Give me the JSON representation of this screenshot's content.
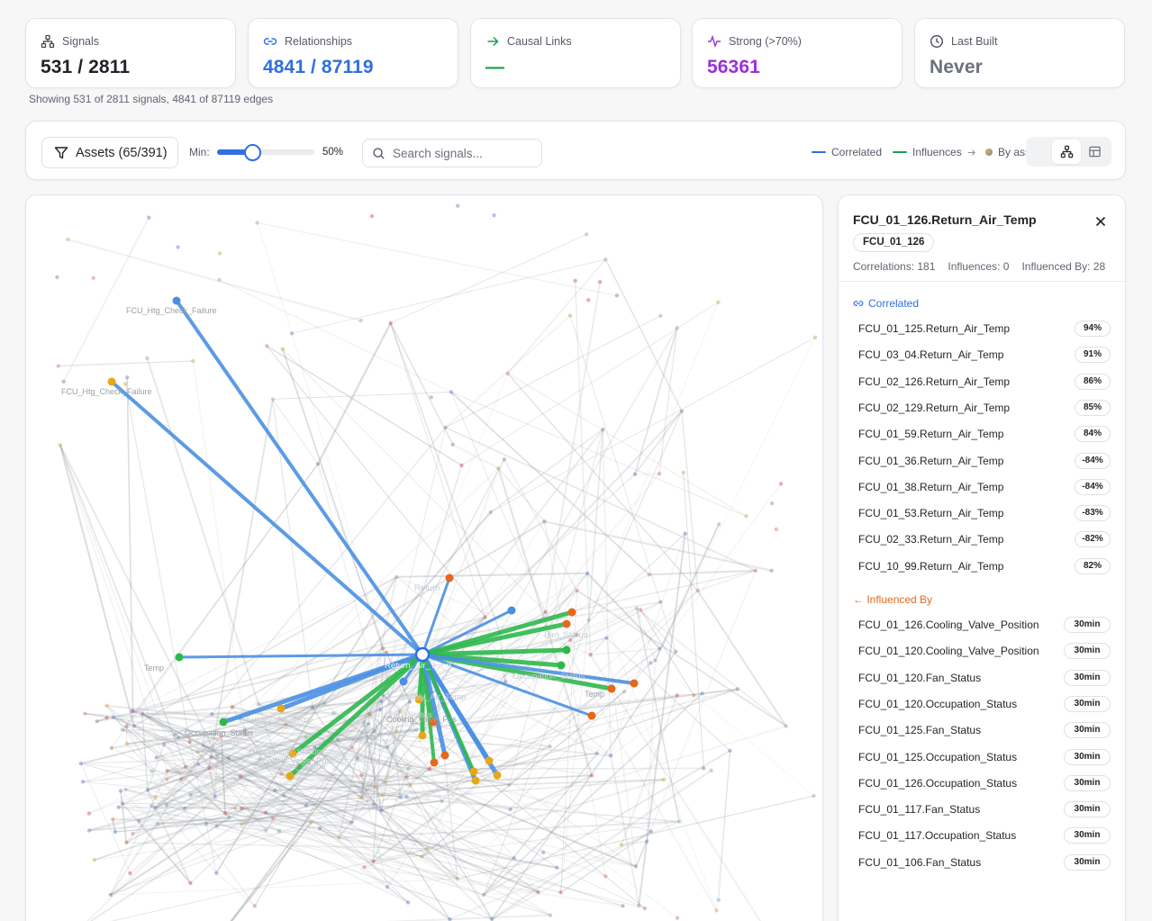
{
  "stats": [
    {
      "label": "Signals",
      "value": "531 / 2811",
      "icon": "network-icon",
      "color": "#1f2328"
    },
    {
      "label": "Relationships",
      "value": "4841 / 87119",
      "icon": "link-icon",
      "color": "#2f6fe0"
    },
    {
      "label": "Causal Links",
      "value": "—",
      "icon": "arrow-right-icon",
      "color": "#19a14a"
    },
    {
      "label": "Strong (>70%)",
      "value": "56361",
      "icon": "activity-icon",
      "color": "#9b2fd8"
    },
    {
      "label": "Last Built",
      "value": "Never",
      "icon": "clock-icon",
      "color": "#6b717c"
    }
  ],
  "showing_text": "Showing 531 of 2811 signals, 4841 of 87119 edges",
  "toolbar": {
    "assets_label": "Assets (65/391)",
    "min_label": "Min:",
    "min_value": "50%",
    "min_fraction": 0.5,
    "search_placeholder": "Search signals...",
    "legend": {
      "correlated": "Correlated",
      "influences": "Influences",
      "by_asset": "By asset"
    },
    "view_modes": [
      "graph",
      "table"
    ],
    "active_view": "graph"
  },
  "colors": {
    "correlated": "#4a90e2",
    "influences": "#2db84d",
    "influenced_by": "#e06a1a",
    "accent_blue": "#2f6fe0"
  },
  "graph": {
    "center_label": "Return_Air_Temp",
    "labels": [
      "FCU_Htg_Check_Failure",
      "FCU_Htg_Check_Failure",
      "Return",
      "Fan_Status",
      "Fan_Status",
      "Occupation_Status",
      "Occupation_Status",
      "Supply_Air_Temp",
      "Supply_Air_Temp",
      "Occupation_Status",
      "Fan_Status",
      "Occupation_Status",
      "Cooling_Valve_Position",
      "Cooling_Valve_Pos",
      "Temp",
      "Temp"
    ]
  },
  "detail": {
    "title": "FCU_01_126.Return_Air_Temp",
    "asset": "FCU_01_126",
    "correlations": "Correlations: 181",
    "influences": "Influences: 0",
    "influenced_by_count": "Influenced By: 28",
    "correlated_heading": "Correlated",
    "correlated": [
      {
        "name": "FCU_01_125.Return_Air_Temp",
        "value": "94%"
      },
      {
        "name": "FCU_03_04.Return_Air_Temp",
        "value": "91%"
      },
      {
        "name": "FCU_02_126.Return_Air_Temp",
        "value": "86%"
      },
      {
        "name": "FCU_02_129.Return_Air_Temp",
        "value": "85%"
      },
      {
        "name": "FCU_01_59.Return_Air_Temp",
        "value": "84%"
      },
      {
        "name": "FCU_01_36.Return_Air_Temp",
        "value": "-84%"
      },
      {
        "name": "FCU_01_38.Return_Air_Temp",
        "value": "-84%"
      },
      {
        "name": "FCU_01_53.Return_Air_Temp",
        "value": "-83%"
      },
      {
        "name": "FCU_02_33.Return_Air_Temp",
        "value": "-82%"
      },
      {
        "name": "FCU_10_99.Return_Air_Temp",
        "value": "82%"
      }
    ],
    "influenced_heading": "← Influenced By",
    "influenced_by": [
      {
        "name": "FCU_01_126.Cooling_Valve_Position",
        "value": "30min"
      },
      {
        "name": "FCU_01_120.Cooling_Valve_Position",
        "value": "30min"
      },
      {
        "name": "FCU_01_120.Fan_Status",
        "value": "30min"
      },
      {
        "name": "FCU_01_120.Occupation_Status",
        "value": "30min"
      },
      {
        "name": "FCU_01_125.Fan_Status",
        "value": "30min"
      },
      {
        "name": "FCU_01_125.Occupation_Status",
        "value": "30min"
      },
      {
        "name": "FCU_01_126.Occupation_Status",
        "value": "30min"
      },
      {
        "name": "FCU_01_117.Fan_Status",
        "value": "30min"
      },
      {
        "name": "FCU_01_117.Occupation_Status",
        "value": "30min"
      },
      {
        "name": "FCU_01_106.Fan_Status",
        "value": "30min"
      }
    ]
  }
}
